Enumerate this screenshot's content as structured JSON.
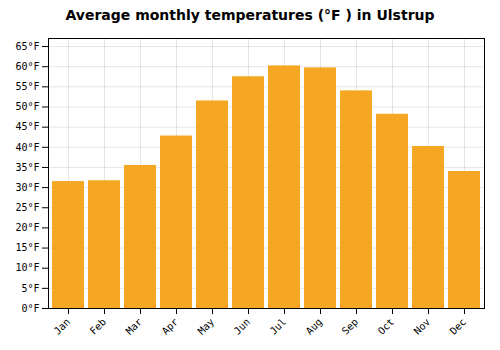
{
  "chart_data": {
    "type": "bar",
    "title": "Average monthly temperatures (°F ) in Ulstrup",
    "categories": [
      "Jan",
      "Feb",
      "Mar",
      "Apr",
      "May",
      "Jun",
      "Jul",
      "Aug",
      "Sep",
      "Oct",
      "Nov",
      "Dec"
    ],
    "values": [
      31.5,
      31.7,
      35.5,
      42.8,
      51.5,
      57.5,
      60.2,
      59.7,
      54.0,
      48.2,
      40.2,
      34.0
    ],
    "color": "#F5A623",
    "ylim": [
      0,
      67
    ],
    "yticks": [
      {
        "value": 0,
        "label": "0°F"
      },
      {
        "value": 5,
        "label": "5°F"
      },
      {
        "value": 10,
        "label": "10°F"
      },
      {
        "value": 15,
        "label": "15°F"
      },
      {
        "value": 20,
        "label": "20°F"
      },
      {
        "value": 25,
        "label": "25°F"
      },
      {
        "value": 30,
        "label": "30°F"
      },
      {
        "value": 35,
        "label": "35°F"
      },
      {
        "value": 40,
        "label": "40°F"
      },
      {
        "value": 45,
        "label": "45°F"
      },
      {
        "value": 50,
        "label": "50°F"
      },
      {
        "value": 55,
        "label": "55°F"
      },
      {
        "value": 60,
        "label": "60°F"
      },
      {
        "value": 65,
        "label": "65°F"
      }
    ],
    "grid": true
  }
}
